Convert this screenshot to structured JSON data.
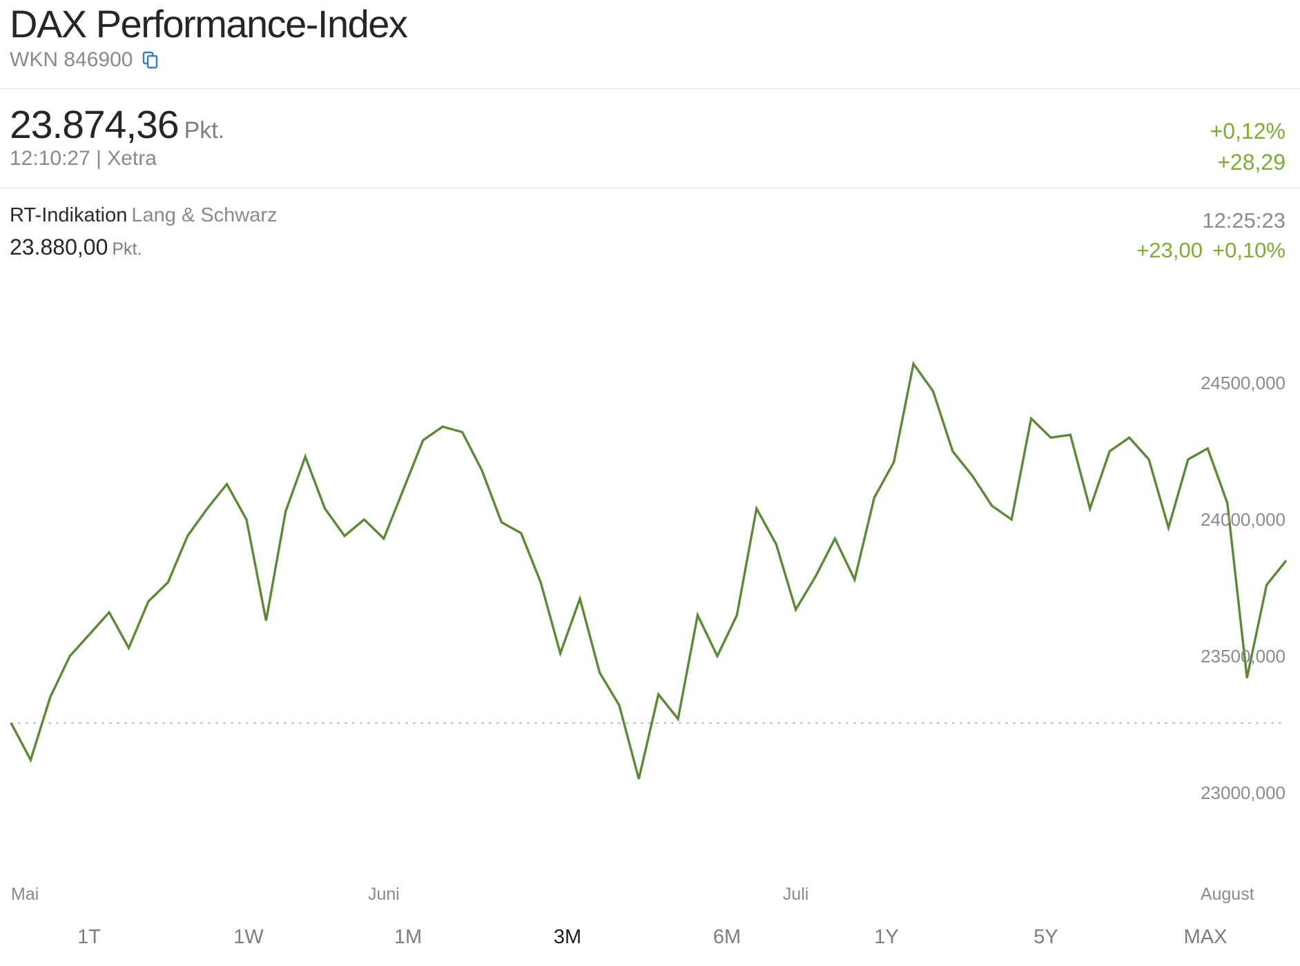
{
  "header": {
    "title": "DAX Performance-Index",
    "wkn": "WKN 846900",
    "copy_icon": "copy-icon"
  },
  "quote": {
    "price": "23.874,36",
    "unit": "Pkt.",
    "time_exchange": "12:10:27 | Xetra",
    "change_pct": "+0,12%",
    "change_abs": "+28,29",
    "positive_color": "#7bac33"
  },
  "indication": {
    "label": "RT-Indikation",
    "source": "Lang & Schwarz",
    "price": "23.880,00",
    "unit": "Pkt.",
    "time": "12:25:23",
    "change_abs": "+23,00",
    "change_pct": "+0,10%"
  },
  "chart_data": {
    "type": "line",
    "line_color": "#5a8a35",
    "ylim": [
      22820,
      24740
    ],
    "y_ticks": [
      {
        "value": 24500,
        "label": "24500,000"
      },
      {
        "value": 24000,
        "label": "24000,000"
      },
      {
        "value": 23500,
        "label": "23500,000"
      },
      {
        "value": 23000,
        "label": "23000,000"
      }
    ],
    "x_labels": [
      {
        "index": 0,
        "label": "Mai",
        "align": "start"
      },
      {
        "index": 19,
        "label": "Juni",
        "align": "middle"
      },
      {
        "index": 40,
        "label": "Juli",
        "align": "middle"
      },
      {
        "index": 62,
        "label": "August",
        "align": "middle"
      }
    ],
    "reference_line": {
      "value": 23255,
      "style": "dotted"
    },
    "grid": false,
    "series": [
      {
        "values": [
          23255,
          23120,
          23350,
          23500,
          23580,
          23660,
          23530,
          23700,
          23770,
          23940,
          24040,
          24130,
          24000,
          23630,
          24030,
          24230,
          24040,
          23940,
          24000,
          23930,
          24110,
          24290,
          24340,
          24320,
          24180,
          23990,
          23950,
          23770,
          23510,
          23710,
          23440,
          23320,
          23050,
          23360,
          23270,
          23650,
          23500,
          23650,
          24040,
          23910,
          23670,
          23790,
          23930,
          23780,
          24080,
          24210,
          24570,
          24470,
          24250,
          24160,
          24050,
          24000,
          24370,
          24300,
          24310,
          24040,
          24250,
          24300,
          24220,
          23970,
          24220,
          24260,
          24060,
          23420,
          23760,
          23850
        ]
      }
    ]
  },
  "ranges": {
    "items": [
      {
        "label": "1T",
        "active": false
      },
      {
        "label": "1W",
        "active": false
      },
      {
        "label": "1M",
        "active": false
      },
      {
        "label": "3M",
        "active": true
      },
      {
        "label": "6M",
        "active": false
      },
      {
        "label": "1Y",
        "active": false
      },
      {
        "label": "5Y",
        "active": false
      },
      {
        "label": "MAX",
        "active": false
      }
    ]
  }
}
